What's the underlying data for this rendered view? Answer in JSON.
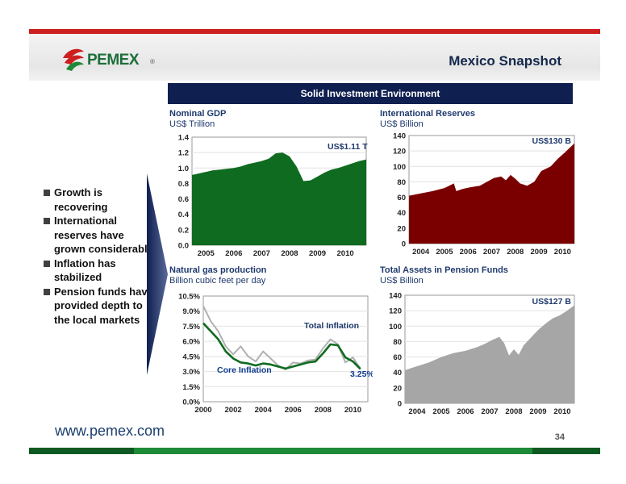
{
  "header": {
    "logo_text": "PEMEX",
    "logo_reg": "®",
    "title": "Mexico Snapshot"
  },
  "banner": "Solid Investment Environment",
  "bullets": [
    "Growth is recovering",
    "International reserves have grown considerably",
    "Inflation has stabilized",
    "Pension funds have provided depth to the local markets"
  ],
  "footer": {
    "url": "www.pemex.com",
    "page_number": "34"
  },
  "colors": {
    "green": "#0f6b1f",
    "red": "#7a0000",
    "gray": "#a6a6a6",
    "navy": "#0f2050",
    "brand_green": "#1d8a37",
    "brand_red": "#cc1f1f"
  },
  "chart_data": [
    {
      "type": "area",
      "title": "Nominal GDP",
      "subtitle": "US$ Trillion",
      "annotation": "US$1.11 T",
      "ylim": [
        0,
        1.4
      ],
      "yticks": [
        "0.0",
        "0.2",
        "0.4",
        "0.6",
        "0.8",
        "1.0",
        "1.2",
        "1.4"
      ],
      "xlim": [
        2004.75,
        2011.0
      ],
      "xticks": [
        "2005",
        "2006",
        "2007",
        "2008",
        "2009",
        "2010"
      ],
      "color": "#0f6b1f",
      "x": [
        2004.75,
        2005.0,
        2005.25,
        2005.5,
        2005.75,
        2006.0,
        2006.25,
        2006.5,
        2006.75,
        2007.0,
        2007.25,
        2007.5,
        2007.75,
        2008.0,
        2008.25,
        2008.5,
        2008.75,
        2009.0,
        2009.25,
        2009.5,
        2009.75,
        2010.0,
        2010.25,
        2010.5,
        2010.75,
        2011.0
      ],
      "values": [
        0.91,
        0.93,
        0.95,
        0.97,
        0.98,
        0.99,
        1.0,
        1.02,
        1.05,
        1.07,
        1.09,
        1.12,
        1.19,
        1.2,
        1.15,
        1.02,
        0.83,
        0.84,
        0.89,
        0.94,
        0.98,
        1.0,
        1.03,
        1.06,
        1.09,
        1.11
      ]
    },
    {
      "type": "area",
      "title": "International Reserves",
      "subtitle": "US$ Billion",
      "annotation": "US$130 B",
      "ylim": [
        0,
        140
      ],
      "yticks": [
        "0",
        "20",
        "40",
        "60",
        "80",
        "100",
        "120",
        "140"
      ],
      "xlim": [
        2004.0,
        2011.0
      ],
      "xticks": [
        "2004",
        "2005",
        "2006",
        "2007",
        "2008",
        "2009",
        "2010"
      ],
      "color": "#7a0000",
      "x": [
        2004.0,
        2004.5,
        2005.0,
        2005.5,
        2005.9,
        2006.0,
        2006.3,
        2006.6,
        2007.0,
        2007.3,
        2007.6,
        2007.9,
        2008.1,
        2008.3,
        2008.5,
        2008.7,
        2009.0,
        2009.3,
        2009.6,
        2010.0,
        2010.3,
        2010.6,
        2011.0
      ],
      "values": [
        62,
        65,
        68,
        72,
        78,
        68,
        71,
        73,
        75,
        80,
        85,
        87,
        82,
        89,
        84,
        78,
        75,
        80,
        94,
        100,
        110,
        118,
        130
      ]
    },
    {
      "type": "line",
      "title": "Natural gas production",
      "subtitle": "Billion cubic feet per day",
      "ylim": [
        0,
        10.5
      ],
      "yticks": [
        "0.0%",
        "1.5%",
        "3.0%",
        "4.5%",
        "6.0%",
        "7.5%",
        "9.0%",
        "10.5%"
      ],
      "xlim": [
        2000,
        2011
      ],
      "xticks": [
        "2000",
        "2002",
        "2004",
        "2006",
        "2008",
        "2010"
      ],
      "annotations": [
        "Total Inflation",
        "Core Inflation",
        "3.25%"
      ],
      "series": [
        {
          "name": "Total Inflation",
          "color": "#b0b0b0",
          "x": [
            2000.0,
            2000.5,
            2001.0,
            2001.5,
            2002.0,
            2002.5,
            2003.0,
            2003.5,
            2004.0,
            2004.5,
            2005.0,
            2005.5,
            2006.0,
            2006.5,
            2007.0,
            2007.5,
            2008.0,
            2008.5,
            2009.0,
            2009.5,
            2010.0,
            2010.5
          ],
          "values": [
            9.5,
            8.0,
            7.0,
            5.5,
            4.7,
            5.5,
            4.5,
            4.0,
            5.0,
            4.3,
            3.6,
            3.2,
            3.9,
            3.8,
            4.1,
            4.2,
            5.3,
            6.2,
            5.7,
            3.9,
            4.4,
            3.3
          ]
        },
        {
          "name": "Core Inflation",
          "color": "#0f6b1f",
          "x": [
            2000.0,
            2000.5,
            2001.0,
            2001.5,
            2002.0,
            2002.5,
            2003.0,
            2003.5,
            2004.0,
            2004.5,
            2005.0,
            2005.5,
            2006.0,
            2006.5,
            2007.0,
            2007.5,
            2008.0,
            2008.5,
            2009.0,
            2009.5,
            2010.0,
            2010.5
          ],
          "values": [
            7.8,
            7.0,
            6.2,
            5.0,
            4.3,
            3.9,
            3.8,
            3.6,
            3.8,
            3.7,
            3.5,
            3.3,
            3.5,
            3.7,
            3.9,
            4.0,
            4.8,
            5.7,
            5.6,
            4.4,
            4.0,
            3.25
          ]
        }
      ]
    },
    {
      "type": "area",
      "title": "Total Assets in Pension Funds",
      "subtitle": "US$ Billion",
      "annotation": "US$127 B",
      "ylim": [
        0,
        140
      ],
      "yticks": [
        "0",
        "20",
        "40",
        "60",
        "80",
        "100",
        "120",
        "140"
      ],
      "xlim": [
        2004.0,
        2011.0
      ],
      "xticks": [
        "2004",
        "2005",
        "2006",
        "2007",
        "2008",
        "2009",
        "2010"
      ],
      "color": "#a6a6a6",
      "x": [
        2004.0,
        2004.5,
        2005.0,
        2005.5,
        2006.0,
        2006.5,
        2007.0,
        2007.3,
        2007.6,
        2007.9,
        2008.1,
        2008.3,
        2008.5,
        2008.7,
        2008.9,
        2009.2,
        2009.5,
        2009.8,
        2010.1,
        2010.4,
        2010.7,
        2011.0
      ],
      "values": [
        43,
        48,
        53,
        60,
        65,
        68,
        73,
        77,
        82,
        86,
        78,
        62,
        70,
        63,
        75,
        85,
        95,
        103,
        110,
        114,
        120,
        127
      ]
    }
  ]
}
